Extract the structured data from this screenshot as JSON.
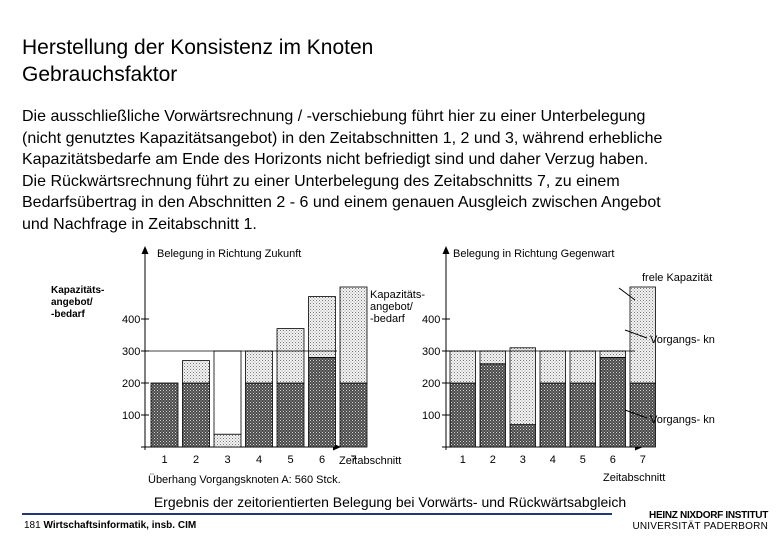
{
  "slide": {
    "title_line1": "Herstellung der Konsistenz im Knoten",
    "title_line2": "Gebrauchsfaktor",
    "body": [
      "Die ausschließliche Vorwärtsrechnung / -verschiebung führt hier zu einer Unterbelegung",
      "(nicht genutztes Kapazitätsangebot) in den Zeitabschnitten 1, 2 und 3, während erhebliche",
      "Kapazitätsbedarfe am Ende des Horizonts nicht befriedigt sind und daher Verzug haben.",
      "Die Rückwärtsrechnung führt zu einer Unterbelegung des Zeitabschnitts 7, zu einem",
      "Bedarfsübertrag in den Abschnitten 2 - 6 und einem genauen Ausgleich zwischen Angebot",
      "und Nachfrage in Zeitabschnitt 1."
    ],
    "caption": "Ergebnis der zeitorientierten Belegung bei Vorwärts- und Rückwärtsabgleich"
  },
  "footer": {
    "page_number": "181",
    "course": "Wirtschaftsinformatik, insb. CIM",
    "logo_line1": "HEINZ NIXDORF INSTITUT",
    "logo_line2": "UNIVERSITÄT PADERBORN"
  },
  "chart_data": [
    {
      "type": "bar",
      "title": "Belegung in Richtung Zukunft",
      "ylabel": [
        "Kapazitäts-",
        "angebot/",
        "-bedarf"
      ],
      "xlabel": "Zeitabschnitt",
      "subtitle": "Überhang Vorgangsknoten A: 560 Stck.",
      "categories": [
        "1",
        "2",
        "3",
        "4",
        "5",
        "6",
        "7"
      ],
      "yticks": [
        100,
        200,
        300,
        400
      ],
      "capacity_line": 300,
      "series": [
        {
          "name": "Vorgangsknoten B",
          "values": [
            200,
            200,
            0,
            200,
            200,
            280,
            200
          ]
        },
        {
          "name": "Vorgangsknoten A",
          "values": [
            0,
            70,
            40,
            100,
            170,
            190,
            300
          ]
        },
        {
          "name": "freie Kapazität",
          "values": [
            0,
            0,
            260,
            0,
            0,
            0,
            0
          ]
        }
      ]
    },
    {
      "type": "bar",
      "title": "Belegung in Richtung Gegenwart",
      "ylabel": [
        "Kapazitäts-",
        "angebot/",
        "-bedarf"
      ],
      "xlabel": "Zeitabschnitt",
      "categories": [
        "1",
        "2",
        "3",
        "4",
        "5",
        "6",
        "7"
      ],
      "yticks": [
        100,
        200,
        300,
        400
      ],
      "capacity_line": 300,
      "series": [
        {
          "name": "Vorgangsknoten B",
          "values": [
            200,
            260,
            70,
            200,
            200,
            280,
            200
          ]
        },
        {
          "name": "Vorgangsknoten A",
          "values": [
            100,
            40,
            240,
            100,
            100,
            20,
            300
          ]
        },
        {
          "name": "freie Kapazität",
          "values": [
            0,
            0,
            0,
            0,
            0,
            0,
            0
          ]
        }
      ],
      "legend": [
        "frele Kapazität",
        "Vorgangs- knoten A",
        "Vorgangs- knoten B"
      ]
    }
  ]
}
